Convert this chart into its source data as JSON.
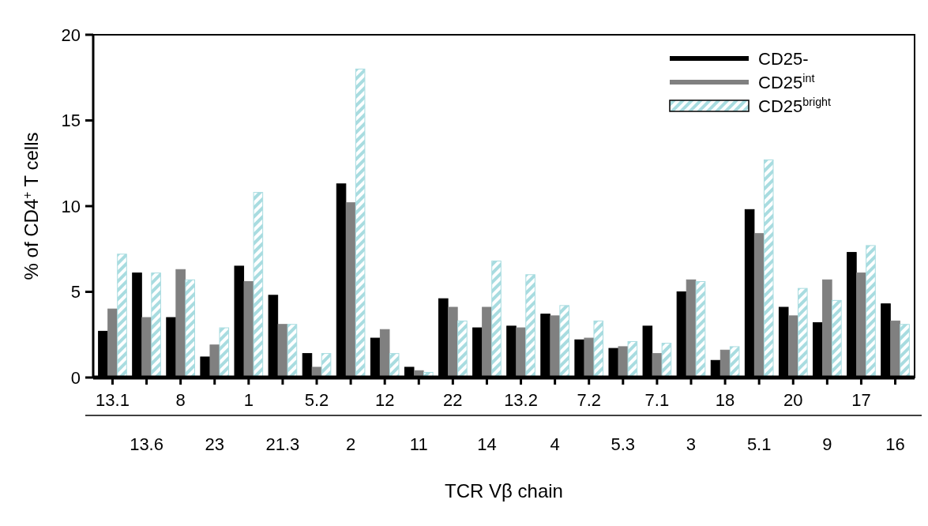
{
  "chart_data": {
    "type": "bar",
    "xlabel": "TCR Vβ chain",
    "ylabel": "% of CD4$^{+}$ T cells",
    "categories": [
      "13.1",
      "13.6",
      "8",
      "23",
      "1",
      "21.3",
      "5.2",
      "2",
      "12",
      "11",
      "22",
      "14",
      "13.2",
      "4",
      "7.2",
      "5.3",
      "7.1",
      "3",
      "18",
      "5.1",
      "20",
      "9",
      "17",
      "16"
    ],
    "series": [
      {
        "name": "CD25-",
        "color": "#000000",
        "values": [
          2.7,
          6.1,
          3.5,
          1.2,
          6.5,
          4.8,
          1.4,
          11.3,
          2.3,
          0.6,
          4.6,
          2.9,
          3.0,
          3.7,
          2.2,
          1.7,
          3.0,
          5.0,
          1.0,
          9.8,
          4.1,
          3.2,
          7.3,
          4.3
        ]
      },
      {
        "name": "CD25$^{int}$",
        "color": "#808080",
        "values": [
          4.0,
          3.5,
          6.3,
          1.9,
          5.6,
          3.1,
          0.6,
          10.2,
          2.8,
          0.4,
          4.1,
          4.1,
          2.9,
          3.6,
          2.3,
          1.8,
          1.4,
          5.7,
          1.6,
          8.4,
          3.6,
          5.7,
          6.1,
          3.3
        ]
      },
      {
        "name": "CD25$^{bright}$",
        "color": "#a8dce0",
        "values": [
          7.2,
          6.1,
          5.7,
          2.9,
          10.8,
          3.1,
          1.4,
          18.0,
          1.4,
          0.3,
          3.3,
          6.8,
          6.0,
          4.2,
          3.3,
          2.1,
          2.0,
          5.6,
          1.8,
          12.7,
          5.2,
          4.5,
          7.7,
          3.1
        ]
      }
    ],
    "ylim": [
      0,
      20
    ],
    "yticks": [
      0,
      5,
      10,
      15,
      20
    ],
    "grid": false,
    "legend": "top right"
  }
}
